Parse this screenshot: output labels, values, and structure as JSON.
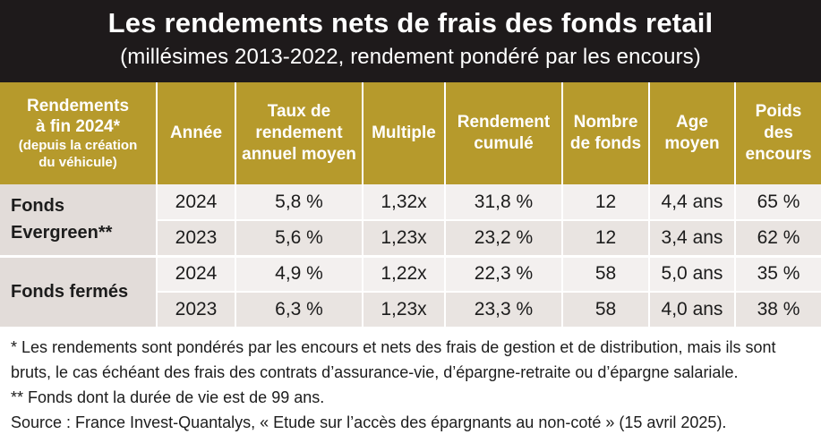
{
  "header": {
    "title": "Les rendements nets de frais des fonds retail",
    "subtitle": "(millésimes 2013-2022, rendement pondéré par les encours)"
  },
  "columns": {
    "c0_line1": "Rendements",
    "c0_line2": "à fin 2024*",
    "c0_note1": "(depuis la création",
    "c0_note2": "du véhicule)",
    "annee": "Année",
    "taux_l1": "Taux de",
    "taux_l2": "rendement",
    "taux_l3": "annuel moyen",
    "multiple": "Multiple",
    "rend_l1": "Rendement",
    "rend_l2": "cumulé",
    "nombre_l1": "Nombre",
    "nombre_l2": "de fonds",
    "age_l1": "Age",
    "age_l2": "moyen",
    "poids_l1": "Poids",
    "poids_l2": "des",
    "poids_l3": "encours"
  },
  "groups": [
    {
      "label_l1": "Fonds",
      "label_l2": "Evergreen**",
      "rows": [
        {
          "annee": "2024",
          "taux": "5,8 %",
          "multiple": "1,32x",
          "rendement": "31,8 %",
          "nombre": "12",
          "age": "4,4 ans",
          "poids": "65 %"
        },
        {
          "annee": "2023",
          "taux": "5,6 %",
          "multiple": "1,23x",
          "rendement": "23,2 %",
          "nombre": "12",
          "age": "3,4 ans",
          "poids": "62 %"
        }
      ]
    },
    {
      "label_l1": "Fonds fermés",
      "label_l2": "",
      "rows": [
        {
          "annee": "2024",
          "taux": "4,9 %",
          "multiple": "1,22x",
          "rendement": "22,3 %",
          "nombre": "58",
          "age": "5,0 ans",
          "poids": "35 %"
        },
        {
          "annee": "2023",
          "taux": "6,3 %",
          "multiple": "1,23x",
          "rendement": "23,3 %",
          "nombre": "58",
          "age": "4,0 ans",
          "poids": "38 %"
        }
      ]
    }
  ],
  "footnotes": {
    "note1": "* Les rendements sont pondérés par les encours et nets des frais de gestion et de distribution, mais ils sont bruts, le cas échéant des frais des contrats d’assurance-vie, d’épargne-retraite ou d’épargne salariale.",
    "note2": "** Fonds dont la durée de vie est de 99 ans.",
    "source": "Source : France Invest-Quantalys, « Etude sur l’accès des épargnants au non-coté » (15 avril 2025)."
  },
  "colors": {
    "header_bg": "#1e1a1b",
    "column_header_bg": "#b69a2c",
    "row_light": "#f3f0ef",
    "row_dark": "#e9e4e1",
    "group_cell": "#e2dcd9"
  }
}
